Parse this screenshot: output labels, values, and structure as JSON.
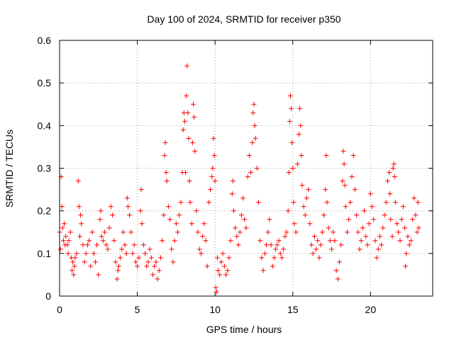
{
  "chart_data": {
    "type": "scatter",
    "title": "Day 100 of 2024, SRMTID for receiver p350",
    "xlabel": "GPS time / hours",
    "ylabel": "SRMTID / TECUs",
    "xlim": [
      0,
      24
    ],
    "ylim": [
      0,
      0.6
    ],
    "x_ticks": [
      "0",
      "5",
      "10",
      "15",
      "20"
    ],
    "y_ticks": [
      "0",
      "0.1",
      "0.2",
      "0.3",
      "0.4",
      "0.5",
      "0.6"
    ],
    "grid": true,
    "marker": "+",
    "color": "#ff0000",
    "series": [
      {
        "name": "SRMTID",
        "points": [
          [
            0.0,
            0.15
          ],
          [
            0.05,
            0.11
          ],
          [
            0.1,
            0.28
          ],
          [
            0.15,
            0.21
          ],
          [
            0.2,
            0.16
          ],
          [
            0.25,
            0.13
          ],
          [
            0.3,
            0.17
          ],
          [
            0.35,
            0.12
          ],
          [
            0.4,
            0.14
          ],
          [
            0.5,
            0.12
          ],
          [
            0.55,
            0.1
          ],
          [
            0.6,
            0.13
          ],
          [
            0.7,
            0.15
          ],
          [
            0.75,
            0.09
          ],
          [
            0.8,
            0.06
          ],
          [
            0.85,
            0.08
          ],
          [
            0.9,
            0.05
          ],
          [
            0.95,
            0.07
          ],
          [
            1.0,
            0.09
          ],
          [
            1.1,
            0.1
          ],
          [
            1.2,
            0.27
          ],
          [
            1.25,
            0.21
          ],
          [
            1.3,
            0.14
          ],
          [
            1.35,
            0.19
          ],
          [
            1.4,
            0.17
          ],
          [
            1.5,
            0.12
          ],
          [
            1.6,
            0.08
          ],
          [
            1.7,
            0.1
          ],
          [
            1.8,
            0.12
          ],
          [
            1.9,
            0.13
          ],
          [
            2.0,
            0.07
          ],
          [
            2.1,
            0.15
          ],
          [
            2.2,
            0.1
          ],
          [
            2.3,
            0.08
          ],
          [
            2.4,
            0.12
          ],
          [
            2.5,
            0.05
          ],
          [
            2.6,
            0.18
          ],
          [
            2.65,
            0.2
          ],
          [
            2.7,
            0.14
          ],
          [
            2.8,
            0.13
          ],
          [
            2.9,
            0.15
          ],
          [
            3.0,
            0.12
          ],
          [
            3.1,
            0.11
          ],
          [
            3.2,
            0.16
          ],
          [
            3.3,
            0.21
          ],
          [
            3.4,
            0.19
          ],
          [
            3.5,
            0.13
          ],
          [
            3.6,
            0.08
          ],
          [
            3.7,
            0.04
          ],
          [
            3.75,
            0.06
          ],
          [
            3.8,
            0.07
          ],
          [
            3.9,
            0.09
          ],
          [
            4.0,
            0.11
          ],
          [
            4.1,
            0.15
          ],
          [
            4.2,
            0.12
          ],
          [
            4.3,
            0.1
          ],
          [
            4.35,
            0.23
          ],
          [
            4.4,
            0.21
          ],
          [
            4.5,
            0.19
          ],
          [
            4.6,
            0.15
          ],
          [
            4.7,
            0.1
          ],
          [
            4.8,
            0.12
          ],
          [
            4.9,
            0.08
          ],
          [
            5.0,
            0.07
          ],
          [
            5.1,
            0.09
          ],
          [
            5.2,
            0.2
          ],
          [
            5.25,
            0.25
          ],
          [
            5.3,
            0.17
          ],
          [
            5.4,
            0.12
          ],
          [
            5.5,
            0.1
          ],
          [
            5.6,
            0.07
          ],
          [
            5.7,
            0.08
          ],
          [
            5.8,
            0.11
          ],
          [
            5.9,
            0.09
          ],
          [
            6.0,
            0.05
          ],
          [
            6.1,
            0.07
          ],
          [
            6.2,
            0.08
          ],
          [
            6.3,
            0.04
          ],
          [
            6.4,
            0.06
          ],
          [
            6.5,
            0.09
          ],
          [
            6.6,
            0.13
          ],
          [
            6.7,
            0.19
          ],
          [
            6.75,
            0.33
          ],
          [
            6.8,
            0.36
          ],
          [
            6.85,
            0.29
          ],
          [
            6.9,
            0.27
          ],
          [
            7.0,
            0.21
          ],
          [
            7.1,
            0.18
          ],
          [
            7.2,
            0.11
          ],
          [
            7.3,
            0.08
          ],
          [
            7.4,
            0.13
          ],
          [
            7.5,
            0.17
          ],
          [
            7.6,
            0.15
          ],
          [
            7.7,
            0.19
          ],
          [
            7.8,
            0.22
          ],
          [
            7.9,
            0.29
          ],
          [
            7.95,
            0.39
          ],
          [
            8.0,
            0.43
          ],
          [
            8.05,
            0.41
          ],
          [
            8.1,
            0.29
          ],
          [
            8.15,
            0.47
          ],
          [
            8.2,
            0.54
          ],
          [
            8.25,
            0.43
          ],
          [
            8.3,
            0.37
          ],
          [
            8.35,
            0.27
          ],
          [
            8.4,
            0.22
          ],
          [
            8.5,
            0.17
          ],
          [
            8.55,
            0.36
          ],
          [
            8.6,
            0.45
          ],
          [
            8.65,
            0.42
          ],
          [
            8.7,
            0.34
          ],
          [
            8.8,
            0.2
          ],
          [
            8.9,
            0.15
          ],
          [
            9.0,
            0.11
          ],
          [
            9.1,
            0.1
          ],
          [
            9.2,
            0.14
          ],
          [
            9.3,
            0.17
          ],
          [
            9.4,
            0.13
          ],
          [
            9.5,
            0.07
          ],
          [
            9.6,
            0.22
          ],
          [
            9.7,
            0.25
          ],
          [
            9.8,
            0.28
          ],
          [
            9.85,
            0.3
          ],
          [
            9.9,
            0.37
          ],
          [
            9.95,
            0.33
          ],
          [
            10.0,
            0.27
          ],
          [
            10.05,
            0.02
          ],
          [
            10.1,
            0.01
          ],
          [
            10.15,
            0.09
          ],
          [
            10.2,
            0.06
          ],
          [
            10.3,
            0.05
          ],
          [
            10.4,
            0.08
          ],
          [
            10.5,
            0.1
          ],
          [
            10.6,
            0.07
          ],
          [
            10.7,
            0.05
          ],
          [
            10.8,
            0.06
          ],
          [
            10.9,
            0.09
          ],
          [
            11.0,
            0.13
          ],
          [
            11.1,
            0.24
          ],
          [
            11.15,
            0.27
          ],
          [
            11.2,
            0.2
          ],
          [
            11.3,
            0.16
          ],
          [
            11.4,
            0.14
          ],
          [
            11.5,
            0.12
          ],
          [
            11.6,
            0.15
          ],
          [
            11.7,
            0.19
          ],
          [
            11.8,
            0.23
          ],
          [
            11.9,
            0.18
          ],
          [
            12.0,
            0.16
          ],
          [
            12.1,
            0.28
          ],
          [
            12.2,
            0.33
          ],
          [
            12.3,
            0.29
          ],
          [
            12.4,
            0.36
          ],
          [
            12.45,
            0.43
          ],
          [
            12.5,
            0.45
          ],
          [
            12.55,
            0.4
          ],
          [
            12.6,
            0.37
          ],
          [
            12.7,
            0.3
          ],
          [
            12.8,
            0.22
          ],
          [
            12.9,
            0.13
          ],
          [
            13.0,
            0.09
          ],
          [
            13.1,
            0.06
          ],
          [
            13.2,
            0.1
          ],
          [
            13.3,
            0.12
          ],
          [
            13.4,
            0.15
          ],
          [
            13.5,
            0.18
          ],
          [
            13.6,
            0.12
          ],
          [
            13.7,
            0.07
          ],
          [
            13.8,
            0.09
          ],
          [
            13.9,
            0.11
          ],
          [
            14.0,
            0.12
          ],
          [
            14.1,
            0.13
          ],
          [
            14.2,
            0.1
          ],
          [
            14.3,
            0.09
          ],
          [
            14.4,
            0.11
          ],
          [
            14.5,
            0.14
          ],
          [
            14.6,
            0.15
          ],
          [
            14.7,
            0.2
          ],
          [
            14.75,
            0.29
          ],
          [
            14.8,
            0.41
          ],
          [
            14.85,
            0.47
          ],
          [
            14.9,
            0.44
          ],
          [
            14.95,
            0.36
          ],
          [
            15.0,
            0.3
          ],
          [
            15.05,
            0.22
          ],
          [
            15.1,
            0.17
          ],
          [
            15.2,
            0.15
          ],
          [
            15.3,
            0.31
          ],
          [
            15.4,
            0.38
          ],
          [
            15.45,
            0.44
          ],
          [
            15.5,
            0.4
          ],
          [
            15.55,
            0.33
          ],
          [
            15.6,
            0.26
          ],
          [
            15.7,
            0.21
          ],
          [
            15.8,
            0.19
          ],
          [
            15.9,
            0.23
          ],
          [
            16.0,
            0.25
          ],
          [
            16.1,
            0.17
          ],
          [
            16.2,
            0.12
          ],
          [
            16.3,
            0.1
          ],
          [
            16.4,
            0.14
          ],
          [
            16.5,
            0.11
          ],
          [
            16.6,
            0.13
          ],
          [
            16.7,
            0.09
          ],
          [
            16.8,
            0.12
          ],
          [
            16.9,
            0.15
          ],
          [
            17.0,
            0.19
          ],
          [
            17.1,
            0.25
          ],
          [
            17.15,
            0.33
          ],
          [
            17.2,
            0.22
          ],
          [
            17.3,
            0.16
          ],
          [
            17.4,
            0.13
          ],
          [
            17.5,
            0.11
          ],
          [
            17.6,
            0.15
          ],
          [
            17.7,
            0.13
          ],
          [
            17.8,
            0.06
          ],
          [
            17.9,
            0.04
          ],
          [
            18.0,
            0.08
          ],
          [
            18.1,
            0.12
          ],
          [
            18.2,
            0.27
          ],
          [
            18.25,
            0.34
          ],
          [
            18.3,
            0.31
          ],
          [
            18.35,
            0.26
          ],
          [
            18.4,
            0.21
          ],
          [
            18.5,
            0.15
          ],
          [
            18.6,
            0.18
          ],
          [
            18.7,
            0.22
          ],
          [
            18.8,
            0.28
          ],
          [
            18.9,
            0.33
          ],
          [
            19.0,
            0.25
          ],
          [
            19.1,
            0.19
          ],
          [
            19.2,
            0.15
          ],
          [
            19.3,
            0.11
          ],
          [
            19.4,
            0.13
          ],
          [
            19.5,
            0.16
          ],
          [
            19.6,
            0.2
          ],
          [
            19.7,
            0.14
          ],
          [
            19.8,
            0.12
          ],
          [
            19.9,
            0.17
          ],
          [
            20.0,
            0.24
          ],
          [
            20.1,
            0.21
          ],
          [
            20.2,
            0.18
          ],
          [
            20.3,
            0.13
          ],
          [
            20.4,
            0.09
          ],
          [
            20.5,
            0.11
          ],
          [
            20.6,
            0.14
          ],
          [
            20.7,
            0.12
          ],
          [
            20.8,
            0.16
          ],
          [
            20.9,
            0.19
          ],
          [
            21.0,
            0.22
          ],
          [
            21.1,
            0.27
          ],
          [
            21.2,
            0.29
          ],
          [
            21.25,
            0.24
          ],
          [
            21.3,
            0.18
          ],
          [
            21.4,
            0.14
          ],
          [
            21.45,
            0.3
          ],
          [
            21.5,
            0.31
          ],
          [
            21.55,
            0.28
          ],
          [
            21.6,
            0.22
          ],
          [
            21.7,
            0.17
          ],
          [
            21.8,
            0.15
          ],
          [
            21.9,
            0.13
          ],
          [
            22.0,
            0.18
          ],
          [
            22.1,
            0.21
          ],
          [
            22.2,
            0.16
          ],
          [
            22.25,
            0.07
          ],
          [
            22.3,
            0.1
          ],
          [
            22.4,
            0.14
          ],
          [
            22.5,
            0.12
          ],
          [
            22.6,
            0.13
          ],
          [
            22.7,
            0.18
          ],
          [
            22.8,
            0.23
          ],
          [
            22.9,
            0.19
          ],
          [
            23.0,
            0.15
          ],
          [
            23.05,
            0.22
          ],
          [
            23.1,
            0.16
          ]
        ]
      }
    ]
  }
}
